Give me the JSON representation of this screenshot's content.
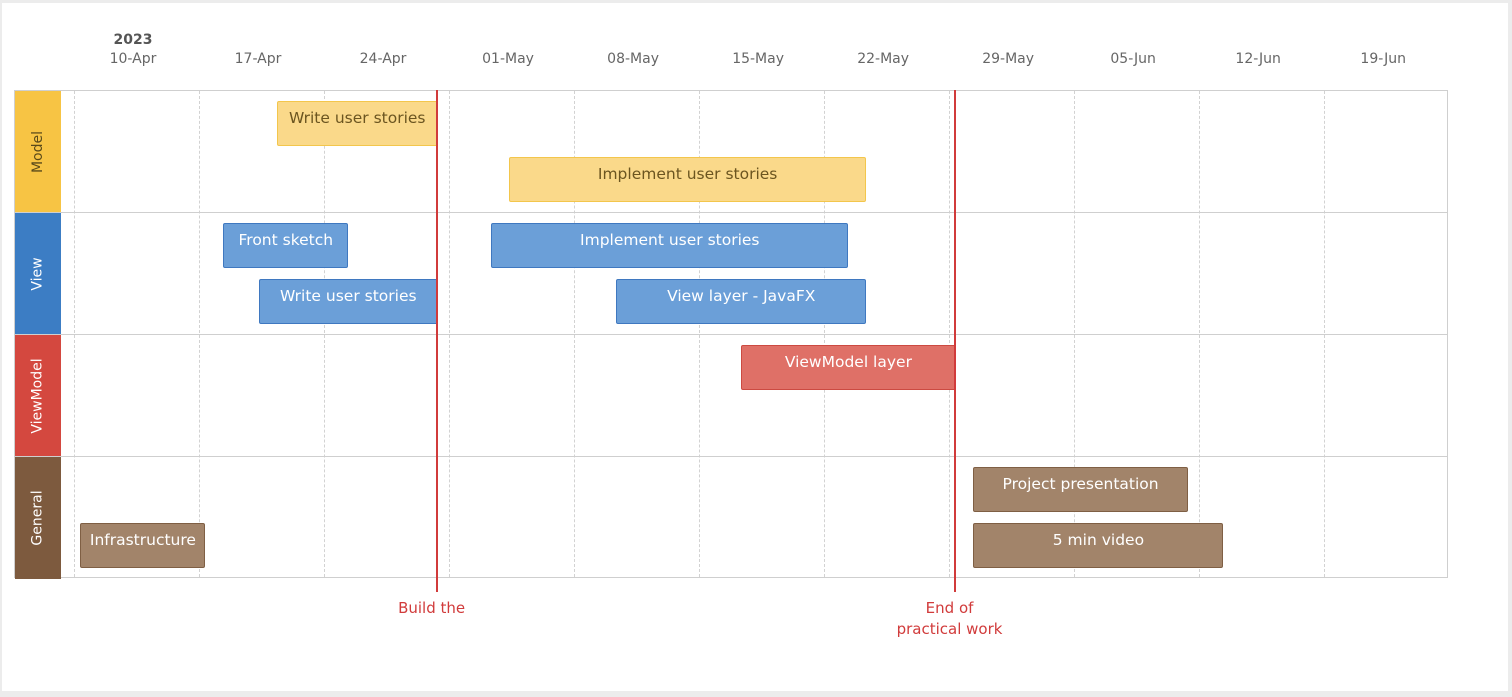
{
  "chart_data": {
    "type": "gantt",
    "year_label": "2023",
    "x_ticks": [
      "10-Apr",
      "17-Apr",
      "24-Apr",
      "01-May",
      "08-May",
      "15-May",
      "22-May",
      "29-May",
      "05-Jun",
      "12-Jun",
      "19-Jun"
    ],
    "x_range": [
      "2023-04-07",
      "2023-06-24"
    ],
    "lanes": [
      {
        "name": "Model",
        "color": "#f7c444",
        "text_color": "#5a4a1a"
      },
      {
        "name": "View",
        "color": "#3c7dc4",
        "text_color": "#ffffff"
      },
      {
        "name": "ViewModel",
        "color": "#d4483f",
        "text_color": "#ffffff"
      },
      {
        "name": "General",
        "color": "#7d5a3e",
        "text_color": "#ffffff"
      }
    ],
    "tasks": [
      {
        "lane": 0,
        "row": 0,
        "label": "Write user stories",
        "start": "2023-04-18",
        "end": "2023-04-27",
        "fill": "#fad98a",
        "border": "#f3c64c",
        "text": "#6b5520"
      },
      {
        "lane": 0,
        "row": 1,
        "label": "Implement user stories",
        "start": "2023-05-01",
        "end": "2023-05-21",
        "fill": "#fad98a",
        "border": "#f3c64c",
        "text": "#6b5520"
      },
      {
        "lane": 1,
        "row": 0,
        "label": "Front sketch",
        "start": "2023-04-15",
        "end": "2023-04-22",
        "fill": "#6b9fd8",
        "border": "#3f78c0",
        "text": "#ffffff"
      },
      {
        "lane": 1,
        "row": 0,
        "label": "Implement user stories",
        "start": "2023-04-30",
        "end": "2023-05-20",
        "fill": "#6b9fd8",
        "border": "#3f78c0",
        "text": "#ffffff"
      },
      {
        "lane": 1,
        "row": 1,
        "label": "Write user stories",
        "start": "2023-04-17",
        "end": "2023-04-27",
        "fill": "#6b9fd8",
        "border": "#3f78c0",
        "text": "#ffffff"
      },
      {
        "lane": 1,
        "row": 1,
        "label": "View layer - JavaFX",
        "start": "2023-05-07",
        "end": "2023-05-21",
        "fill": "#6b9fd8",
        "border": "#3f78c0",
        "text": "#ffffff"
      },
      {
        "lane": 2,
        "row": 0,
        "label": "ViewModel layer",
        "start": "2023-05-14",
        "end": "2023-05-26",
        "fill": "#df7067",
        "border": "#cc4a41",
        "text": "#ffffff"
      },
      {
        "lane": 3,
        "row": 0,
        "label": "Project presentation",
        "start": "2023-05-27",
        "end": "2023-06-08",
        "fill": "#a2846a",
        "border": "#7f5f44",
        "text": "#ffffff"
      },
      {
        "lane": 3,
        "row": 1,
        "label": "Infrastructure",
        "start": "2023-04-07",
        "end": "2023-04-14",
        "fill": "#a2846a",
        "border": "#7f5f44",
        "text": "#ffffff"
      },
      {
        "lane": 3,
        "row": 1,
        "label": "5 min video",
        "start": "2023-05-27",
        "end": "2023-06-10",
        "fill": "#a2846a",
        "border": "#7f5f44",
        "text": "#ffffff"
      }
    ],
    "milestones": [
      {
        "date": "2023-04-27",
        "label": "Build the",
        "color": "#d13b3b"
      },
      {
        "date": "2023-05-26",
        "label": "End of\npractical work",
        "color": "#d13b3b"
      }
    ],
    "grid": true
  }
}
